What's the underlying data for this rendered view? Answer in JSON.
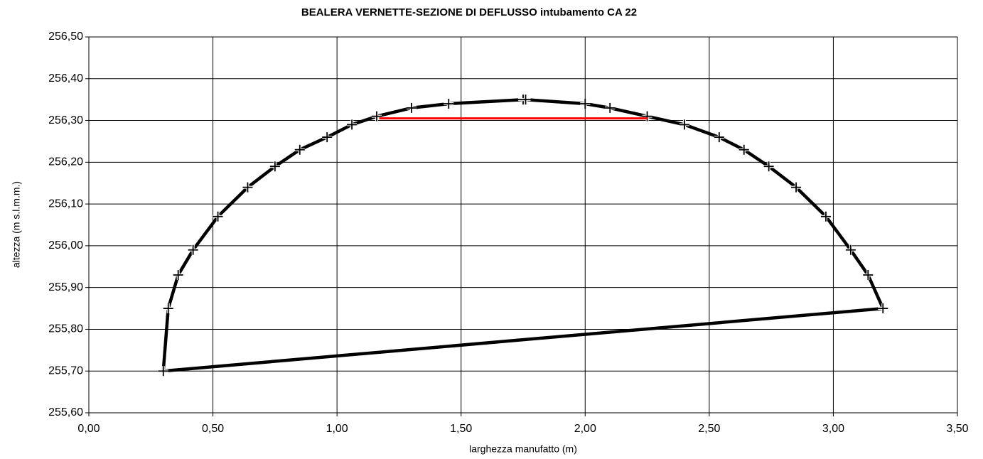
{
  "chart_data": {
    "type": "line",
    "title": "BEALERA VERNETTE-SEZIONE DI DEFLUSSO intubamento CA 22",
    "x_label": "larghezza manufatto (m)",
    "y_label": "altezza (m s.l.m.m.)",
    "xlim": [
      0,
      3.5
    ],
    "ylim": [
      255.6,
      256.5
    ],
    "xticks": [
      {
        "value": 0,
        "label": "0,00"
      },
      {
        "value": 0.5,
        "label": "0,50"
      },
      {
        "value": 1,
        "label": "1,00"
      },
      {
        "value": 1.5,
        "label": "1,50"
      },
      {
        "value": 2,
        "label": "2,00"
      },
      {
        "value": 2.5,
        "label": "2,50"
      },
      {
        "value": 3,
        "label": "3,00"
      },
      {
        "value": 3.5,
        "label": "3,50"
      }
    ],
    "yticks": [
      {
        "value": 255.6,
        "label": "255,60"
      },
      {
        "value": 255.7,
        "label": "255,70"
      },
      {
        "value": 255.8,
        "label": "255,80"
      },
      {
        "value": 255.9,
        "label": "255,90"
      },
      {
        "value": 256.0,
        "label": "256,00"
      },
      {
        "value": 256.1,
        "label": "256,10"
      },
      {
        "value": 256.2,
        "label": "256,20"
      },
      {
        "value": 256.3,
        "label": "256,30"
      },
      {
        "value": 256.4,
        "label": "256,40"
      },
      {
        "value": 256.5,
        "label": "256,50"
      }
    ],
    "grid": true,
    "series": [
      {
        "color": "#000000",
        "markers": true,
        "closed": true,
        "x": [
          0.3,
          0.32,
          0.36,
          0.42,
          0.52,
          0.64,
          0.75,
          0.85,
          0.96,
          1.06,
          1.16,
          1.3,
          1.45,
          1.75,
          1.76,
          2.0,
          2.1,
          2.25,
          2.4,
          2.54,
          2.64,
          2.74,
          2.85,
          2.97,
          3.07,
          3.14,
          3.2
        ],
        "values": [
          255.7,
          255.85,
          255.93,
          255.99,
          256.07,
          256.14,
          256.19,
          256.23,
          256.26,
          256.29,
          256.31,
          256.33,
          256.34,
          256.35,
          256.35,
          256.34,
          256.33,
          256.31,
          256.29,
          256.26,
          256.23,
          256.19,
          256.14,
          256.07,
          255.99,
          255.93,
          255.85
        ]
      },
      {
        "color": "#ff0000",
        "markers": false,
        "closed": false,
        "x": [
          1.17,
          2.25
        ],
        "values": [
          256.305,
          256.305
        ]
      }
    ]
  }
}
